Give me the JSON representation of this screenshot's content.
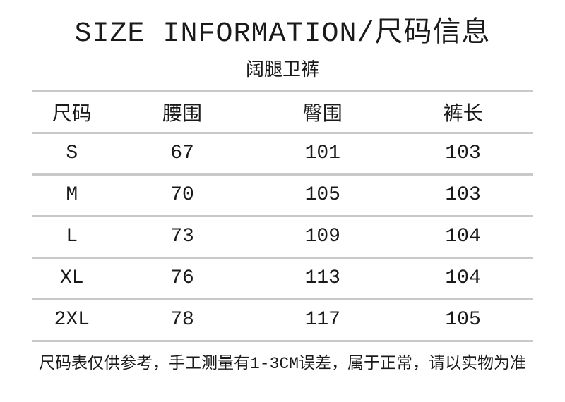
{
  "page": {
    "title": "SIZE INFORMATION/尺码信息",
    "subtitle": "阔腿卫裤",
    "footnote": "尺码表仅供参考，手工测量有1-3CM误差，属于正常，请以实物为准"
  },
  "table": {
    "columns": [
      "尺码",
      "腰围",
      "臀围",
      "裤长"
    ],
    "rows": [
      [
        "S",
        "67",
        "101",
        "103"
      ],
      [
        "M",
        "70",
        "105",
        "103"
      ],
      [
        "L",
        "73",
        "109",
        "104"
      ],
      [
        "XL",
        "76",
        "113",
        "104"
      ],
      [
        "2XL",
        "78",
        "117",
        "105"
      ]
    ]
  },
  "colors": {
    "rule": "#c9c9c9",
    "text": "#1a1a1a",
    "background": "#ffffff"
  }
}
